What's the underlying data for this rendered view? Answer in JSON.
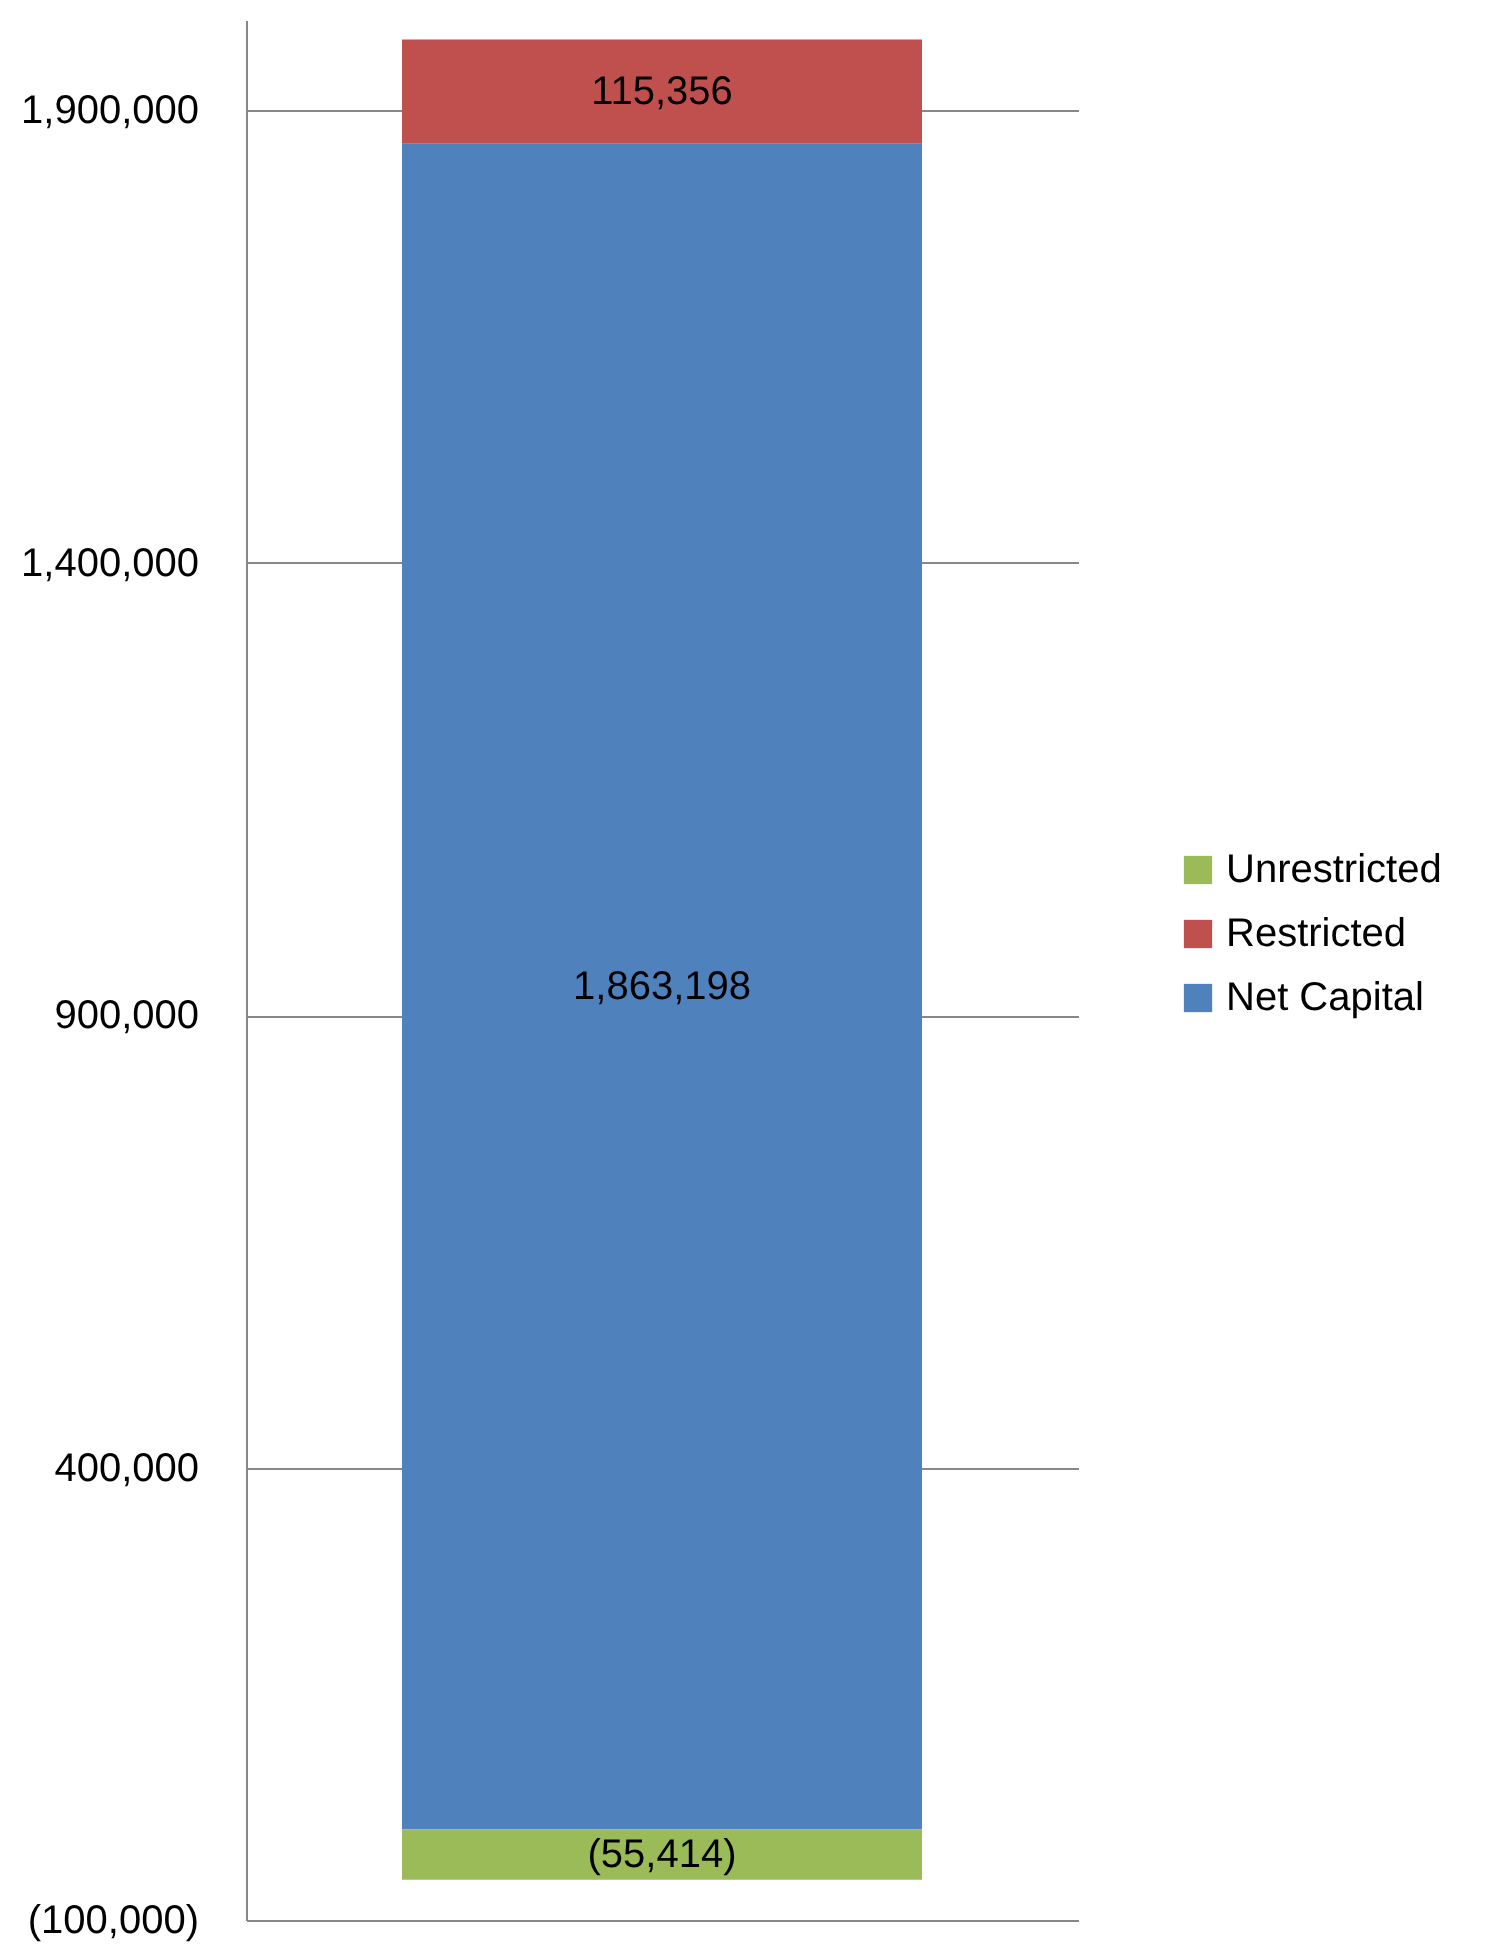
{
  "chart_data": {
    "type": "bar",
    "stacked": true,
    "categories": [
      null
    ],
    "series": [
      {
        "name": "Net Capital",
        "color": "#4f81bd",
        "values": [
          1863198
        ],
        "value_labels": [
          "1,863,198"
        ]
      },
      {
        "name": "Restricted",
        "color": "#c0504d",
        "values": [
          115356
        ],
        "value_labels": [
          "115,356"
        ]
      },
      {
        "name": "Unrestricted",
        "color": "#9bbb59",
        "values": [
          -55414
        ],
        "value_labels": [
          "(55,414)"
        ]
      }
    ],
    "ylim": [
      -100000,
      2000000
    ],
    "yticks": [
      {
        "value": -100000,
        "label": "(100,000)"
      },
      {
        "value": 400000,
        "label": "400,000"
      },
      {
        "value": 900000,
        "label": "900,000"
      },
      {
        "value": 1400000,
        "label": "1,400,000"
      },
      {
        "value": 1900000,
        "label": "1,900,000"
      }
    ],
    "grid": "y",
    "legend": "right"
  }
}
